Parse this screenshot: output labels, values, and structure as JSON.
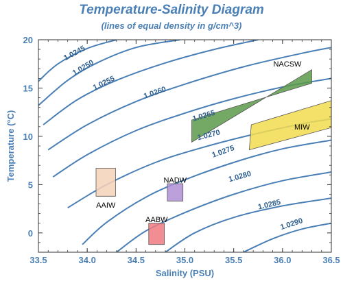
{
  "chart_data": {
    "type": "line",
    "title": "Temperature-Salinity Diagram",
    "subtitle": "(lines of equal density in g/cm^3)",
    "xlabel": "Salinity (PSU)",
    "ylabel": "Temperature (°C)",
    "xlim": [
      33.5,
      36.5
    ],
    "ylim": [
      -2,
      20
    ],
    "xticks": [
      "33.5",
      "34.0",
      "34.5",
      "35.0",
      "35.5",
      "36.0",
      "36.5"
    ],
    "yticks": [
      "0",
      "5",
      "10",
      "15",
      "20"
    ],
    "contour_color": "#4a7fb5",
    "isopycnals": [
      {
        "label": "1.0245",
        "points": [
          [
            33.5,
            15.7
          ],
          [
            33.7,
            17.5
          ],
          [
            34.0,
            19.1
          ],
          [
            34.3,
            20.0
          ]
        ],
        "label_at": [
          33.88,
          18.4
        ]
      },
      {
        "label": "1.0250",
        "points": [
          [
            33.5,
            13.2
          ],
          [
            33.8,
            15.8
          ],
          [
            34.1,
            17.6
          ],
          [
            34.5,
            19.2
          ],
          [
            34.95,
            20.0
          ]
        ],
        "label_at": [
          33.97,
          16.9
        ]
      },
      {
        "label": "1.0255",
        "points": [
          [
            33.55,
            11.2
          ],
          [
            33.9,
            13.8
          ],
          [
            34.3,
            15.8
          ],
          [
            34.8,
            17.6
          ],
          [
            35.3,
            19.0
          ],
          [
            35.75,
            20.0
          ]
        ],
        "label_at": [
          34.18,
          15.3
        ]
      },
      {
        "label": "1.0260",
        "points": [
          [
            33.6,
            8.6
          ],
          [
            34.0,
            11.2
          ],
          [
            34.5,
            13.6
          ],
          [
            35.0,
            15.4
          ],
          [
            35.6,
            17.2
          ],
          [
            36.2,
            18.6
          ],
          [
            36.5,
            19.2
          ]
        ],
        "label_at": [
          34.7,
          14.3
        ]
      },
      {
        "label": "1.0265",
        "points": [
          [
            33.65,
            5.8
          ],
          [
            34.0,
            8.1
          ],
          [
            34.5,
            10.6
          ],
          [
            35.0,
            12.4
          ],
          [
            35.5,
            13.9
          ],
          [
            36.0,
            15.1
          ],
          [
            36.5,
            16.0
          ]
        ],
        "label_at": [
          35.2,
          11.9
        ]
      },
      {
        "label": "1.0270",
        "points": [
          [
            33.8,
            2.6
          ],
          [
            34.2,
            5.0
          ],
          [
            34.7,
            7.3
          ],
          [
            35.2,
            8.9
          ],
          [
            35.7,
            10.2
          ],
          [
            36.2,
            11.3
          ],
          [
            36.5,
            11.8
          ]
        ],
        "label_at": [
          35.25,
          9.9
        ]
      },
      {
        "label": "1.0275",
        "points": [
          [
            33.95,
            -1.2
          ],
          [
            34.2,
            1.1
          ],
          [
            34.6,
            3.7
          ],
          [
            35.0,
            5.5
          ],
          [
            35.5,
            7.3
          ],
          [
            36.0,
            8.7
          ],
          [
            36.5,
            9.6
          ]
        ],
        "label_at": [
          35.4,
          8.2
        ]
      },
      {
        "label": "1.0280",
        "points": [
          [
            34.3,
            -2.0
          ],
          [
            34.6,
            0.2
          ],
          [
            35.0,
            2.1
          ],
          [
            35.5,
            4.0
          ],
          [
            36.0,
            5.4
          ],
          [
            36.5,
            6.3
          ]
        ],
        "label_at": [
          35.57,
          5.6
        ]
      },
      {
        "label": "1.0285",
        "points": [
          [
            34.8,
            -2.0
          ],
          [
            35.1,
            0.0
          ],
          [
            35.5,
            1.6
          ],
          [
            36.0,
            2.8
          ],
          [
            36.5,
            3.6
          ]
        ],
        "label_at": [
          35.87,
          2.7
        ]
      },
      {
        "label": "1.0290",
        "points": [
          [
            35.6,
            -2.0
          ],
          [
            35.9,
            -0.6
          ],
          [
            36.2,
            0.4
          ],
          [
            36.5,
            1.0
          ]
        ],
        "label_at": [
          36.1,
          0.7
        ]
      }
    ],
    "water_masses": [
      {
        "name": "NACSW",
        "color": "#5b9a4a",
        "polygon": [
          [
            35.07,
            9.4
          ],
          [
            36.3,
            16.9
          ],
          [
            36.3,
            15.5
          ],
          [
            35.07,
            11.7
          ]
        ],
        "label_at": [
          36.05,
          17.5
        ]
      },
      {
        "name": "MIW",
        "color": "#f2dc50",
        "polygon": [
          [
            35.66,
            8.6
          ],
          [
            36.5,
            10.9
          ],
          [
            36.5,
            13.7
          ],
          [
            35.68,
            11.2
          ]
        ],
        "label_at": [
          36.2,
          11.0
        ]
      },
      {
        "name": "AAIW",
        "color": "#f4d2b8",
        "polygon": [
          [
            34.09,
            3.8
          ],
          [
            34.29,
            3.8
          ],
          [
            34.29,
            6.7
          ],
          [
            34.09,
            6.7
          ]
        ],
        "label_at": [
          34.19,
          2.9
        ]
      },
      {
        "name": "NADW",
        "color": "#b08fd6",
        "polygon": [
          [
            34.82,
            3.3
          ],
          [
            34.98,
            3.3
          ],
          [
            34.98,
            5.1
          ],
          [
            34.82,
            5.1
          ]
        ],
        "label_at": [
          34.9,
          5.5
        ]
      },
      {
        "name": "AABW",
        "color": "#f07a80",
        "polygon": [
          [
            34.63,
            -1.2
          ],
          [
            34.79,
            -1.2
          ],
          [
            34.79,
            1.0
          ],
          [
            34.63,
            1.0
          ]
        ],
        "label_at": [
          34.71,
          1.4
        ]
      }
    ]
  }
}
